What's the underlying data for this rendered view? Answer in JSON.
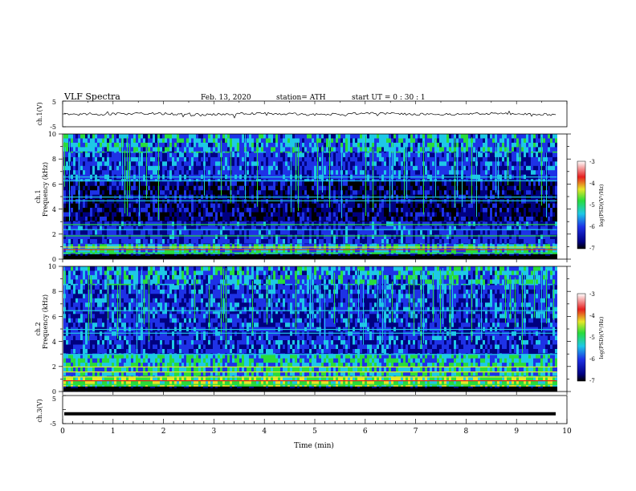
{
  "header": {
    "title": "VLF  Spectra",
    "date": "Feb. 13, 2020",
    "station": "station= ATH",
    "start_ut": "start  UT  =    0  : 30 : 1"
  },
  "colors": {
    "spec_dark": "#000000",
    "spec_navy": "#000080",
    "spec_blue": "#1e32e6",
    "spec_cyan": "#1ec8e6",
    "spec_green": "#28dc3c",
    "spec_yellow": "#e6e628",
    "spec_red": "#e61e1e",
    "spec_white": "#ffffff"
  },
  "chart_data": [
    {
      "type": "line",
      "name": "ch1_waveform",
      "ylabel": "ch.1(V)",
      "ylim": [
        -5,
        5
      ],
      "y_ticklabels": [
        "5",
        "-5"
      ],
      "xlim": [
        0,
        10
      ],
      "baseline": 0,
      "description_values": {
        "approx_min": -0.8,
        "approx_max": 0.8
      }
    },
    {
      "type": "heatmap",
      "name": "ch1_spectrogram",
      "ylabel_line1": "ch.1",
      "ylabel_line2": "Frequency  (kHz)",
      "ylim": [
        0,
        10
      ],
      "y_ticklabels": [
        "0",
        "2",
        "4",
        "6",
        "8",
        "10"
      ],
      "xlim": [
        0,
        10
      ],
      "data_end_min": 9.8,
      "colorbar": {
        "label": "log(PSD)(V²/Hz)",
        "range": [
          -7,
          -3
        ],
        "ticklabels": [
          "-3",
          "-4",
          "-5",
          "-6",
          "-7"
        ]
      }
    },
    {
      "type": "heatmap",
      "name": "ch2_spectrogram",
      "ylabel_line1": "ch.2",
      "ylabel_line2": "Frequency  (kHz)",
      "ylim": [
        0,
        10
      ],
      "y_ticklabels": [
        "0",
        "2",
        "4",
        "6",
        "8",
        "10"
      ],
      "xlim": [
        0,
        10
      ],
      "data_end_min": 9.8,
      "colorbar": {
        "label": "log(PSD)(V²/Hz)",
        "range": [
          -7,
          -3
        ],
        "ticklabels": [
          "-3",
          "-4",
          "-5",
          "-6",
          "-7"
        ]
      }
    },
    {
      "type": "line",
      "name": "ch3_waveform",
      "ylabel": "ch.3(V)",
      "ylim": [
        -5,
        5
      ],
      "y_ticklabels": [
        "5",
        "-5"
      ],
      "xlim": [
        0,
        10
      ],
      "x_ticklabels": [
        "0",
        "1",
        "2",
        "3",
        "4",
        "5",
        "6",
        "7",
        "8",
        "9",
        "10"
      ],
      "xlabel": "Time  (min)",
      "value": -1.5
    }
  ]
}
